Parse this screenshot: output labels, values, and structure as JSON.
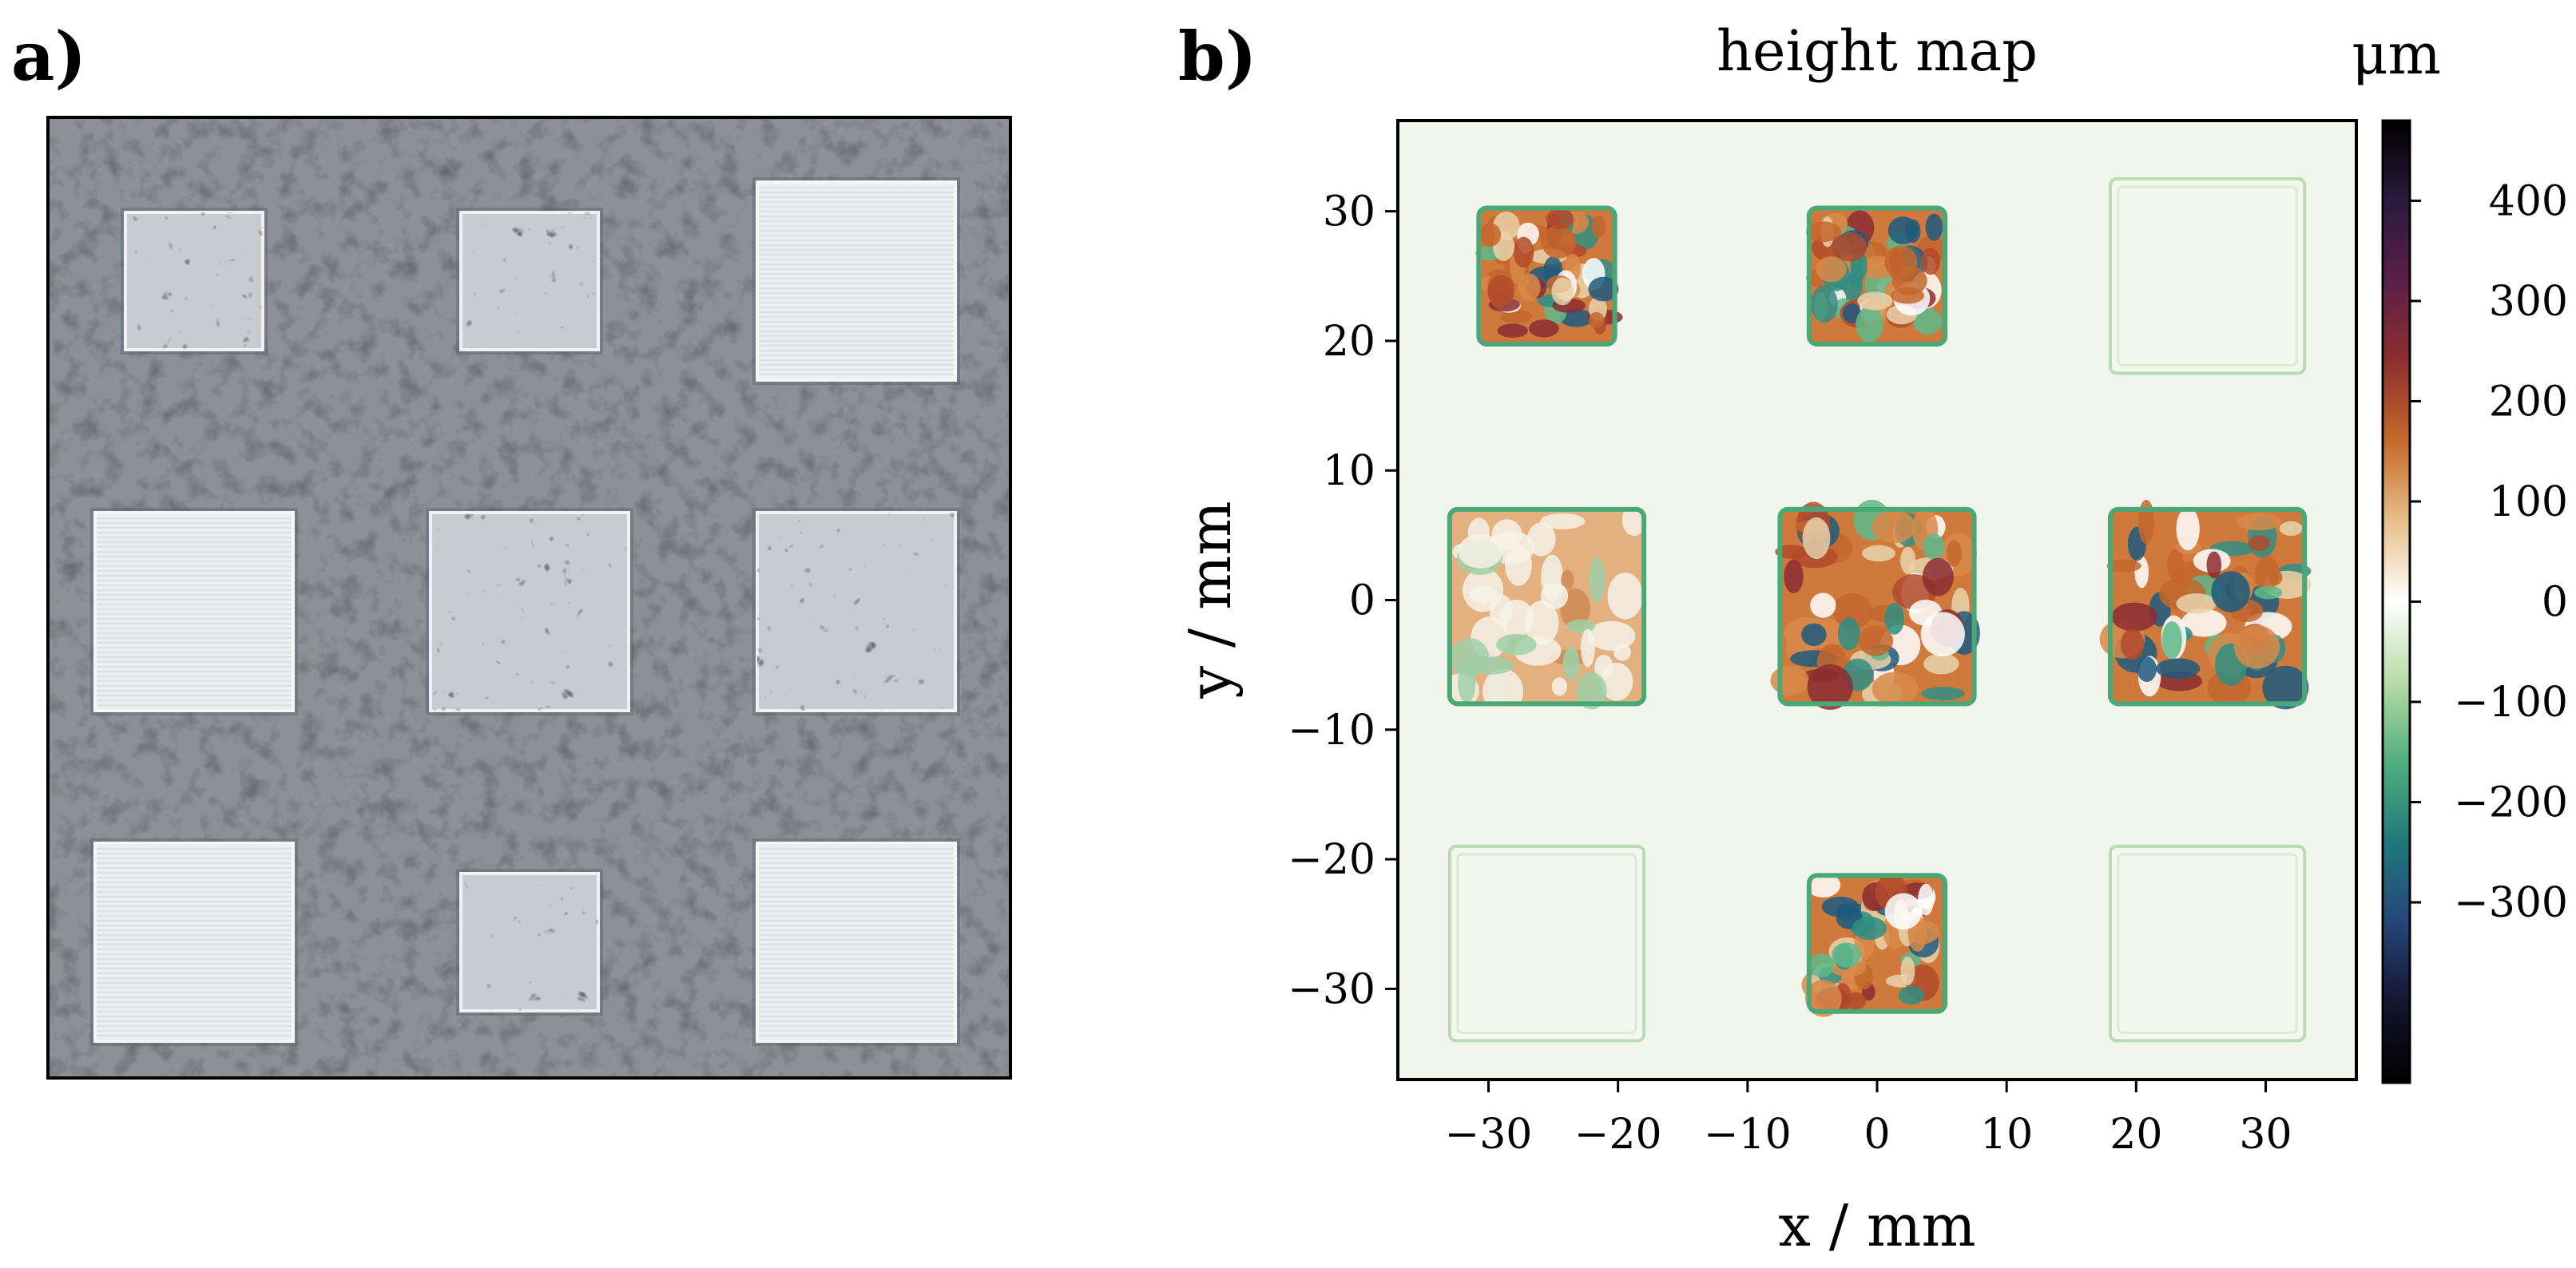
{
  "panel_a": {
    "label": "a)",
    "photo": {
      "description_free": true,
      "grid": [
        [
          "rough-small",
          "rough-small",
          "smooth-large"
        ],
        [
          "smooth-large",
          "rough-large",
          "rough-large"
        ],
        [
          "smooth-large",
          "rough-small",
          "smooth-large"
        ]
      ]
    }
  },
  "panel_b": {
    "label": "b)"
  },
  "chart_data": {
    "type": "heatmap",
    "title": "height map",
    "xlabel": "x / mm",
    "ylabel": "y / mm",
    "xlim": [
      -37,
      37
    ],
    "ylim": [
      -37,
      37
    ],
    "x_ticks": [
      -30,
      -20,
      -10,
      0,
      10,
      20,
      30
    ],
    "y_ticks": [
      -30,
      -20,
      -10,
      0,
      10,
      20,
      30
    ],
    "x_tick_labels": [
      "−30",
      "−20",
      "−10",
      "0",
      "10",
      "20",
      "30"
    ],
    "y_tick_labels": [
      "−30",
      "−20",
      "−10",
      "0",
      "10",
      "20",
      "30"
    ],
    "colorbar": {
      "label": "μm",
      "range": [
        -480,
        480
      ],
      "ticks": [
        400,
        300,
        200,
        100,
        0,
        -100,
        -200,
        -300
      ],
      "tick_labels": [
        "400",
        "300",
        "200",
        "100",
        "0",
        "−100",
        "−200",
        "−300"
      ],
      "colors": [
        "#000000",
        "#2a1a3e",
        "#5a1f4a",
        "#8e2e2e",
        "#c46a2a",
        "#e8c089",
        "#ffffff",
        "#b8dca6",
        "#4fae7e",
        "#1e7a7a",
        "#25457a",
        "#14142e",
        "#000000"
      ]
    },
    "patches": [
      {
        "cx": -25.5,
        "cy": 25,
        "size": 10.5,
        "kind": "rough"
      },
      {
        "cx": 0,
        "cy": 25,
        "size": 10.5,
        "kind": "rough"
      },
      {
        "cx": 25.5,
        "cy": 25,
        "size": 15,
        "kind": "smooth"
      },
      {
        "cx": -25.5,
        "cy": -0.5,
        "size": 15,
        "kind": "smooth-mixed"
      },
      {
        "cx": 0,
        "cy": -0.5,
        "size": 15,
        "kind": "rough"
      },
      {
        "cx": 25.5,
        "cy": -0.5,
        "size": 15,
        "kind": "rough"
      },
      {
        "cx": -25.5,
        "cy": -26.5,
        "size": 15,
        "kind": "smooth"
      },
      {
        "cx": 0,
        "cy": -26.5,
        "size": 10.5,
        "kind": "rough"
      },
      {
        "cx": 25.5,
        "cy": -26.5,
        "size": 15,
        "kind": "smooth"
      }
    ]
  }
}
